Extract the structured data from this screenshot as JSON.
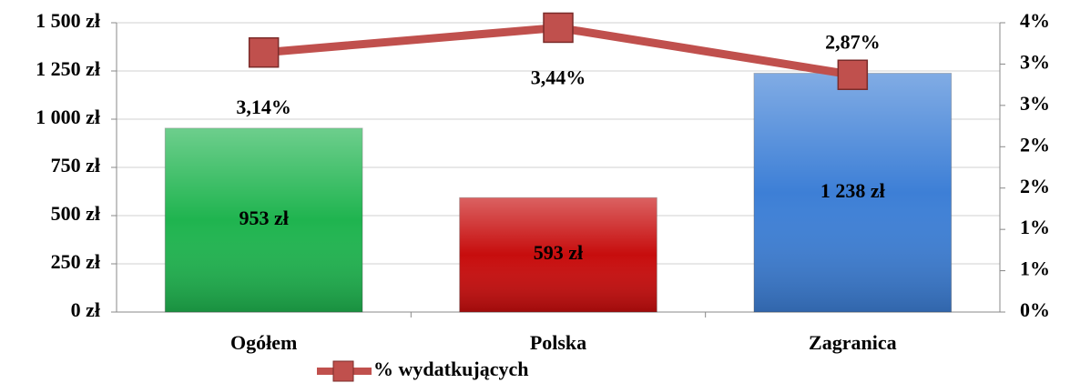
{
  "chart_data": {
    "type": "bar_line",
    "categories": [
      "Ogółem",
      "Polska",
      "Zagranica"
    ],
    "series": [
      {
        "type": "bar",
        "colors": [
          "#1fb44f",
          "#c70d0d",
          "#3d7fd6"
        ],
        "values": [
          953,
          593,
          1238
        ],
        "value_labels": [
          "953 zł",
          "593 zł",
          "1 238 zł"
        ]
      },
      {
        "type": "line",
        "name": "% wydatkujących",
        "color": "#c0504d",
        "axis": "y2",
        "values": [
          3.14,
          3.44,
          2.87
        ],
        "value_labels": [
          "3,14%",
          "3,44%",
          "2,87%"
        ]
      }
    ],
    "ylim": [
      0,
      1500
    ],
    "yticks": [
      {
        "value": 0,
        "label": "0 zł"
      },
      {
        "value": 250,
        "label": "250 zł"
      },
      {
        "value": 500,
        "label": "500 zł"
      },
      {
        "value": 750,
        "label": "750 zł"
      },
      {
        "value": 1000,
        "label": "1 000 zł"
      },
      {
        "value": 1250,
        "label": "1 250 zł"
      },
      {
        "value": 1500,
        "label": "1 500 zł"
      }
    ],
    "y2lim": [
      0,
      3.5
    ],
    "y2ticks": [
      {
        "value": 0,
        "label": "0%"
      },
      {
        "value": 0.5,
        "label": "1%"
      },
      {
        "value": 1,
        "label": "1%"
      },
      {
        "value": 1.5,
        "label": "2%"
      },
      {
        "value": 2,
        "label": "2%"
      },
      {
        "value": 2.5,
        "label": "3%"
      },
      {
        "value": 3,
        "label": "3%"
      },
      {
        "value": 3.5,
        "label": "4%"
      }
    ],
    "grid": true
  }
}
